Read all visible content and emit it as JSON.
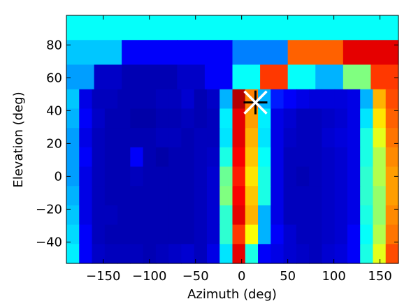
{
  "chart_data": {
    "type": "heatmap",
    "title": "",
    "xlabel": "Azimuth (deg)",
    "ylabel": "Elevation (deg)",
    "xlim": [
      -190,
      170
    ],
    "ylim": [
      -53,
      98
    ],
    "xticks": [
      -150,
      -100,
      -50,
      0,
      50,
      100,
      150
    ],
    "yticks": [
      -40,
      -20,
      0,
      20,
      40,
      60,
      80
    ],
    "colormap": "jet",
    "value_range": [
      0,
      1
    ],
    "cells": [
      {
        "x0": -190,
        "x1": 170,
        "y0": 83,
        "y1": 98,
        "values": [
          0.38
        ]
      },
      {
        "x0": -190,
        "x1": 170,
        "y0": 68,
        "y1": 83,
        "values": [
          0.32,
          0.12,
          0.12,
          0.25,
          0.78,
          0.9
        ]
      },
      {
        "x0": -190,
        "x1": 170,
        "y0": 53,
        "y1": 68,
        "values": [
          0.28,
          0.07,
          0.05,
          0.05,
          0.07,
          0.12,
          0.38,
          0.82,
          0.38,
          0.3,
          0.5,
          0.82
        ]
      },
      {
        "x0": -190,
        "x1": 170,
        "y0": -53,
        "y1": 53,
        "rows": [
          [
            0.32,
            0.1,
            0.06,
            0.06,
            0.05,
            0.05,
            0.05,
            0.06,
            0.06,
            0.08,
            0.05,
            0.07,
            0.3,
            0.95,
            0.75,
            0.3,
            0.15,
            0.12,
            0.1,
            0.09,
            0.09,
            0.09,
            0.1,
            0.3,
            0.7,
            0.8
          ],
          [
            0.3,
            0.12,
            0.07,
            0.05,
            0.05,
            0.04,
            0.04,
            0.05,
            0.05,
            0.06,
            0.05,
            0.06,
            0.36,
            0.9,
            0.72,
            0.36,
            0.1,
            0.08,
            0.06,
            0.06,
            0.07,
            0.08,
            0.1,
            0.35,
            0.65,
            0.78
          ],
          [
            0.28,
            0.1,
            0.06,
            0.05,
            0.05,
            0.05,
            0.05,
            0.06,
            0.06,
            0.05,
            0.06,
            0.06,
            0.35,
            0.9,
            0.7,
            0.35,
            0.1,
            0.07,
            0.06,
            0.06,
            0.08,
            0.09,
            0.1,
            0.4,
            0.6,
            0.76
          ],
          [
            0.28,
            0.12,
            0.06,
            0.05,
            0.05,
            0.12,
            0.05,
            0.04,
            0.05,
            0.05,
            0.06,
            0.07,
            0.4,
            0.88,
            0.68,
            0.38,
            0.1,
            0.06,
            0.06,
            0.06,
            0.07,
            0.08,
            0.1,
            0.4,
            0.55,
            0.74
          ],
          [
            0.28,
            0.1,
            0.06,
            0.05,
            0.05,
            0.06,
            0.05,
            0.05,
            0.05,
            0.05,
            0.06,
            0.08,
            0.48,
            0.85,
            0.65,
            0.4,
            0.1,
            0.06,
            0.05,
            0.06,
            0.07,
            0.08,
            0.1,
            0.42,
            0.55,
            0.72
          ],
          [
            0.3,
            0.1,
            0.06,
            0.05,
            0.05,
            0.05,
            0.05,
            0.05,
            0.05,
            0.05,
            0.06,
            0.08,
            0.5,
            0.88,
            0.68,
            0.4,
            0.1,
            0.06,
            0.06,
            0.06,
            0.07,
            0.08,
            0.1,
            0.42,
            0.52,
            0.72
          ],
          [
            0.32,
            0.1,
            0.06,
            0.06,
            0.05,
            0.05,
            0.05,
            0.05,
            0.05,
            0.05,
            0.06,
            0.08,
            0.42,
            0.9,
            0.7,
            0.3,
            0.1,
            0.06,
            0.06,
            0.06,
            0.07,
            0.08,
            0.1,
            0.4,
            0.52,
            0.74
          ],
          [
            0.34,
            0.12,
            0.06,
            0.05,
            0.05,
            0.05,
            0.05,
            0.05,
            0.05,
            0.05,
            0.06,
            0.08,
            0.42,
            0.82,
            0.62,
            0.3,
            0.12,
            0.08,
            0.06,
            0.06,
            0.07,
            0.08,
            0.12,
            0.38,
            0.55,
            0.76
          ],
          [
            0.36,
            0.12,
            0.07,
            0.06,
            0.06,
            0.06,
            0.05,
            0.06,
            0.07,
            0.08,
            0.06,
            0.1,
            0.35,
            0.9,
            0.4,
            0.12,
            0.1,
            0.08,
            0.07,
            0.06,
            0.08,
            0.09,
            0.12,
            0.4,
            0.6,
            0.8
          ]
        ]
      }
    ],
    "markers": [
      {
        "type": "plus",
        "azimuth": 15,
        "elevation": 45,
        "color": "#000000"
      },
      {
        "type": "x",
        "azimuth": 15,
        "elevation": 45,
        "color": "#ffffff"
      }
    ]
  }
}
